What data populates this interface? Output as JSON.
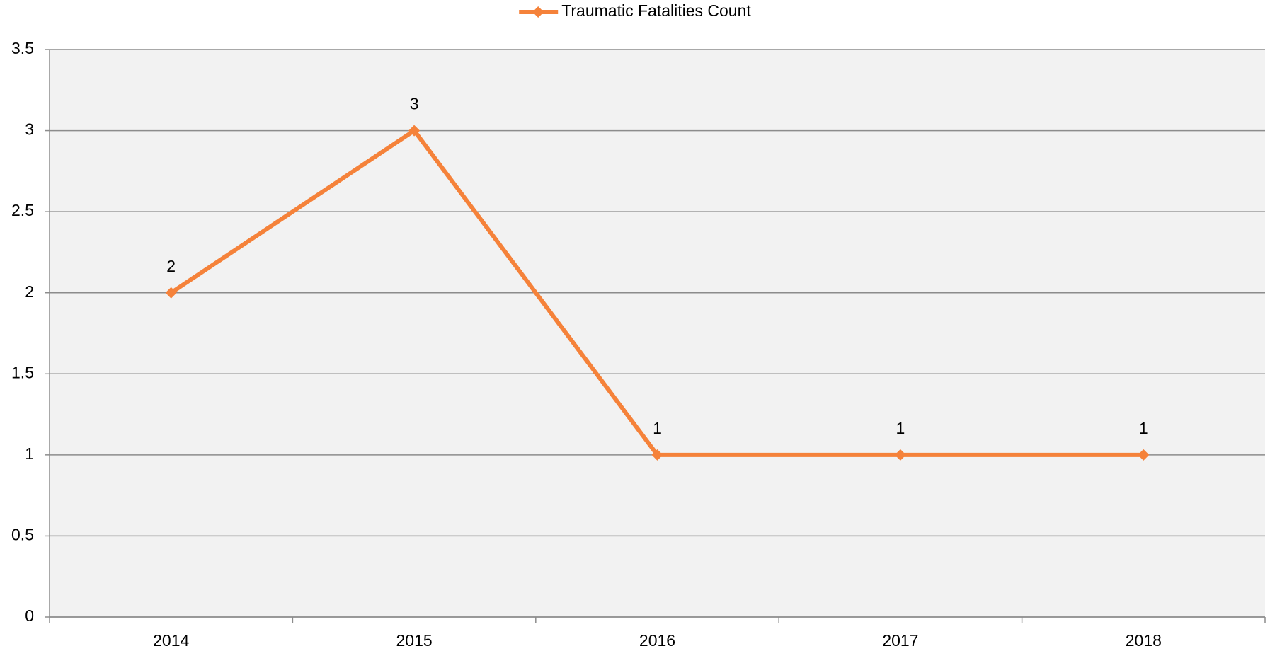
{
  "chart_data": {
    "type": "line",
    "categories": [
      "2014",
      "2015",
      "2016",
      "2017",
      "2018"
    ],
    "series": [
      {
        "name": "Traumatic Fatalities Count",
        "color": "#f5823a",
        "values": [
          2,
          3,
          1,
          1,
          1
        ]
      }
    ],
    "ylim": [
      0,
      3.5
    ],
    "yticks": [
      0,
      0.5,
      1,
      1.5,
      2,
      2.5,
      3,
      3.5
    ],
    "grid": true,
    "legend": "top",
    "data_labels": true
  }
}
